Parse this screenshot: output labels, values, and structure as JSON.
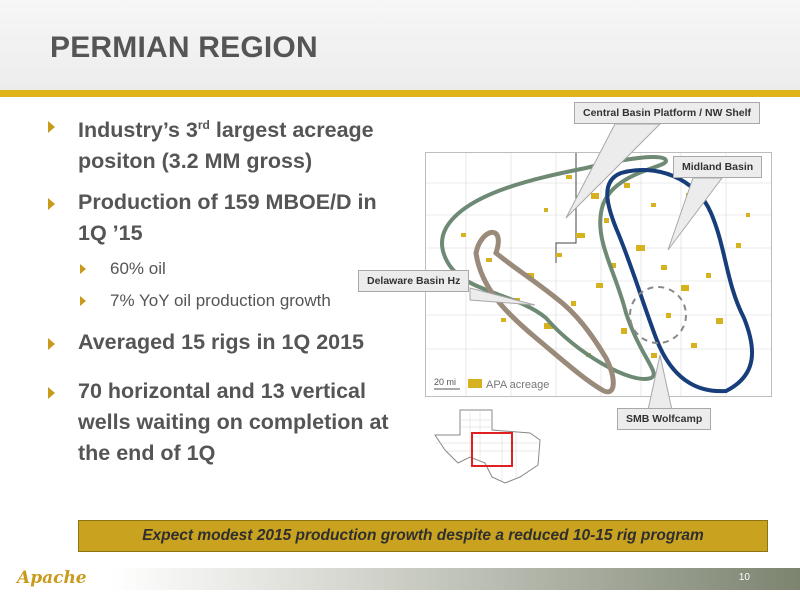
{
  "slide": {
    "title": "PERMIAN REGION",
    "page_number": "10",
    "logo_text": "Apache"
  },
  "bullets": [
    {
      "text_before": "Industry’s 3",
      "superscript": "rd",
      "text_after": " largest acreage positon (3.2 MM gross)"
    },
    {
      "text": "Production of 159 MBOE/D in 1Q ’15",
      "sub": [
        "60% oil",
        "7% YoY oil production growth"
      ]
    },
    {
      "text": "Averaged 15 rigs in 1Q 2015"
    },
    {
      "text": "70 horizontal and 13 vertical wells waiting on completion at the end of 1Q"
    }
  ],
  "map": {
    "callouts": {
      "central_basin": "Central Basin Platform / NW Shelf",
      "midland_basin": "Midland Basin",
      "delaware_basin": "Delaware Basin Hz",
      "smb_wolfcamp": "SMB Wolfcamp"
    },
    "legend": {
      "scale": "20 mi",
      "acreage": "APA acreage"
    },
    "colors": {
      "central_basin_outline": "#6e8a74",
      "midland_basin_outline": "#173d7a",
      "delaware_basin_outline": "#9a8a7a",
      "acreage": "#d6b21e",
      "inset_highlight": "#e02020"
    }
  },
  "banner": "Expect modest 2015 production growth despite a reduced 10-15 rig program",
  "theme": {
    "accent": "#e0b419",
    "text": "#555555",
    "banner_fill": "#c9a21f"
  }
}
